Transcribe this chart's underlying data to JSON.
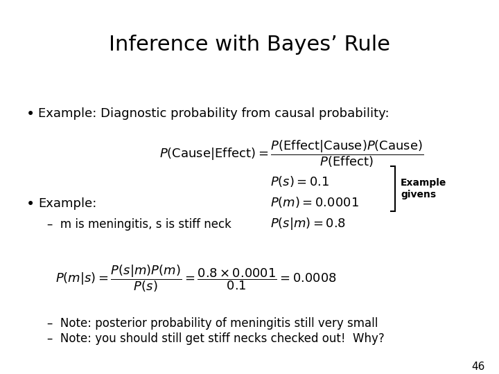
{
  "title": "Inference with Bayes’ Rule",
  "title_fontsize": 22,
  "bg_color": "#ffffff",
  "text_color": "#000000",
  "bullet1_text": "Example: Diagnostic probability from causal probability:",
  "bullet2_text": "Example:",
  "sub_bullet_text": "–  m is meningitis, s is stiff neck",
  "note1_text": "–  Note: posterior probability of meningitis still very small",
  "note2_text": "–  Note: you should still get stiff necks checked out!  Why?",
  "page_number": "46",
  "formula1_bayes": "$P(\\mathrm{Cause}|\\mathrm{Effect}) = \\dfrac{P(\\mathrm{Effect}|\\mathrm{Cause})P(\\mathrm{Cause})}{P(\\mathrm{Effect})}$",
  "formula_psm": "$P(s|m) = 0.8$",
  "formula_pm": "$P(m) = 0.0001$",
  "formula_ps": "$P(s) = 0.1$",
  "formula2_full": "$P(m|s) = \\dfrac{P(s|m)P(m)}{P(s)} = \\dfrac{0.8 \\times 0.0001}{0.1} = 0.0008$",
  "example_givens_label": "Example\ngivens",
  "body_fontsize": 13,
  "formula_fontsize": 13,
  "sub_fontsize": 12
}
